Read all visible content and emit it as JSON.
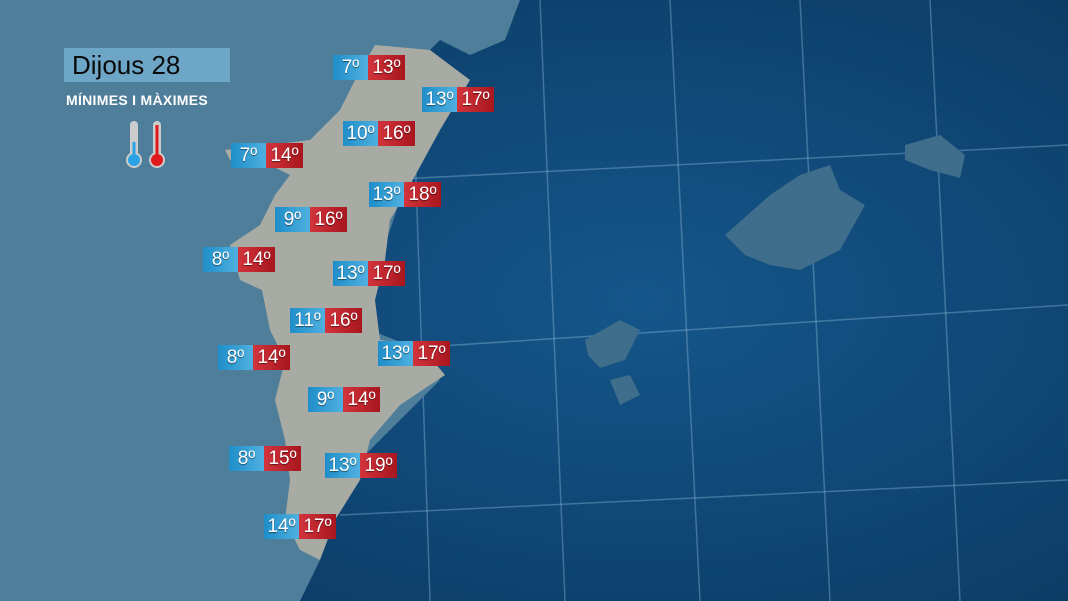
{
  "header": {
    "title": "Dijous 28",
    "subtitle": "MÍNIMES I MÀXIMES"
  },
  "icons": {
    "min": "thermometer-cold-icon",
    "max": "thermometer-hot-icon"
  },
  "colors": {
    "sea": "#0f4a78",
    "min_label": "#2a9ad4",
    "max_label": "#c0252d",
    "land": "#a8aaa4"
  },
  "temperatures": [
    {
      "min": "7º",
      "max": "13º"
    },
    {
      "min": "13º",
      "max": "17º"
    },
    {
      "min": "10º",
      "max": "16º"
    },
    {
      "min": "7º",
      "max": "14º"
    },
    {
      "min": "13º",
      "max": "18º"
    },
    {
      "min": "9º",
      "max": "16º"
    },
    {
      "min": "8º",
      "max": "14º"
    },
    {
      "min": "13º",
      "max": "17º"
    },
    {
      "min": "11º",
      "max": "16º"
    },
    {
      "min": "8º",
      "max": "14º"
    },
    {
      "min": "13º",
      "max": "17º"
    },
    {
      "min": "9º",
      "max": "14º"
    },
    {
      "min": "8º",
      "max": "15º"
    },
    {
      "min": "13º",
      "max": "19º"
    },
    {
      "min": "14º",
      "max": "17º"
    }
  ]
}
